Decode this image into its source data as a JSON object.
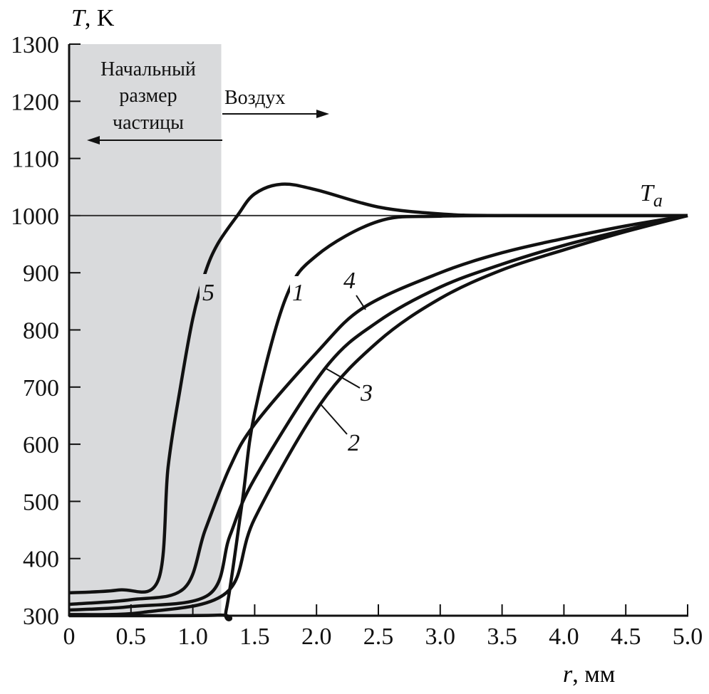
{
  "chart_data": {
    "type": "line",
    "title": "",
    "ylabel_var": "T",
    "ylabel_unit": ", K",
    "xlabel_var": "r",
    "xlabel_unit": ", мм",
    "xlim": [
      0,
      5.0
    ],
    "ylim": [
      300,
      1300
    ],
    "x_ticks": [
      "0",
      "0.5",
      "1.0",
      "1.5",
      "2.0",
      "2.5",
      "3.0",
      "3.5",
      "4.0",
      "4.5",
      "5.0"
    ],
    "y_ticks": [
      "300",
      "400",
      "500",
      "600",
      "700",
      "800",
      "900",
      "1000",
      "1100",
      "1200",
      "1300"
    ],
    "grid": false,
    "shaded_region": {
      "x_range": [
        0,
        1.23
      ],
      "color": "#d9dadc",
      "label_lines": [
        "Начальный",
        "размер",
        "частицы"
      ]
    },
    "air_label": "Воздух",
    "reference_line": {
      "y": 1000,
      "label": "T",
      "label_sub": "a"
    },
    "series": [
      {
        "name": "1",
        "points": [
          [
            0,
            300
          ],
          [
            1.2,
            301
          ],
          [
            1.27,
            310
          ],
          [
            1.4,
            500
          ],
          [
            1.5,
            655
          ],
          [
            1.75,
            855
          ],
          [
            2.0,
            930
          ],
          [
            2.5,
            990
          ],
          [
            3.0,
            999
          ],
          [
            4.0,
            1000
          ],
          [
            5.0,
            1000
          ]
        ]
      },
      {
        "name": "2",
        "points": [
          [
            0,
            302
          ],
          [
            0.6,
            306
          ],
          [
            1.27,
            340
          ],
          [
            1.5,
            470
          ],
          [
            2.03,
            670
          ],
          [
            2.5,
            780
          ],
          [
            3.0,
            855
          ],
          [
            3.5,
            905
          ],
          [
            4.0,
            940
          ],
          [
            4.5,
            972
          ],
          [
            5.0,
            1000
          ]
        ]
      },
      {
        "name": "3",
        "points": [
          [
            0,
            310
          ],
          [
            0.5,
            316
          ],
          [
            1.13,
            337
          ],
          [
            1.3,
            440
          ],
          [
            1.5,
            540
          ],
          [
            2.07,
            733
          ],
          [
            2.5,
            815
          ],
          [
            3.0,
            875
          ],
          [
            3.5,
            915
          ],
          [
            4.0,
            948
          ],
          [
            4.5,
            975
          ],
          [
            5.0,
            1000
          ]
        ]
      },
      {
        "name": "4",
        "points": [
          [
            0,
            320
          ],
          [
            0.5,
            328
          ],
          [
            0.93,
            348
          ],
          [
            1.1,
            450
          ],
          [
            1.3,
            560
          ],
          [
            1.5,
            635
          ],
          [
            2.0,
            760
          ],
          [
            2.38,
            839
          ],
          [
            3.0,
            900
          ],
          [
            3.5,
            935
          ],
          [
            4.0,
            960
          ],
          [
            4.5,
            982
          ],
          [
            5.0,
            1000
          ]
        ]
      },
      {
        "name": "5",
        "points": [
          [
            0,
            340
          ],
          [
            0.4,
            345
          ],
          [
            0.72,
            362
          ],
          [
            0.8,
            560
          ],
          [
            0.9,
            700
          ],
          [
            1.0,
            820
          ],
          [
            1.1,
            900
          ],
          [
            1.2,
            950
          ],
          [
            1.36,
            1000
          ],
          [
            1.5,
            1038
          ],
          [
            1.72,
            1055
          ],
          [
            2.0,
            1045
          ],
          [
            2.5,
            1015
          ],
          [
            3.0,
            1003
          ],
          [
            3.5,
            1000
          ],
          [
            5.0,
            1000
          ]
        ]
      }
    ]
  }
}
